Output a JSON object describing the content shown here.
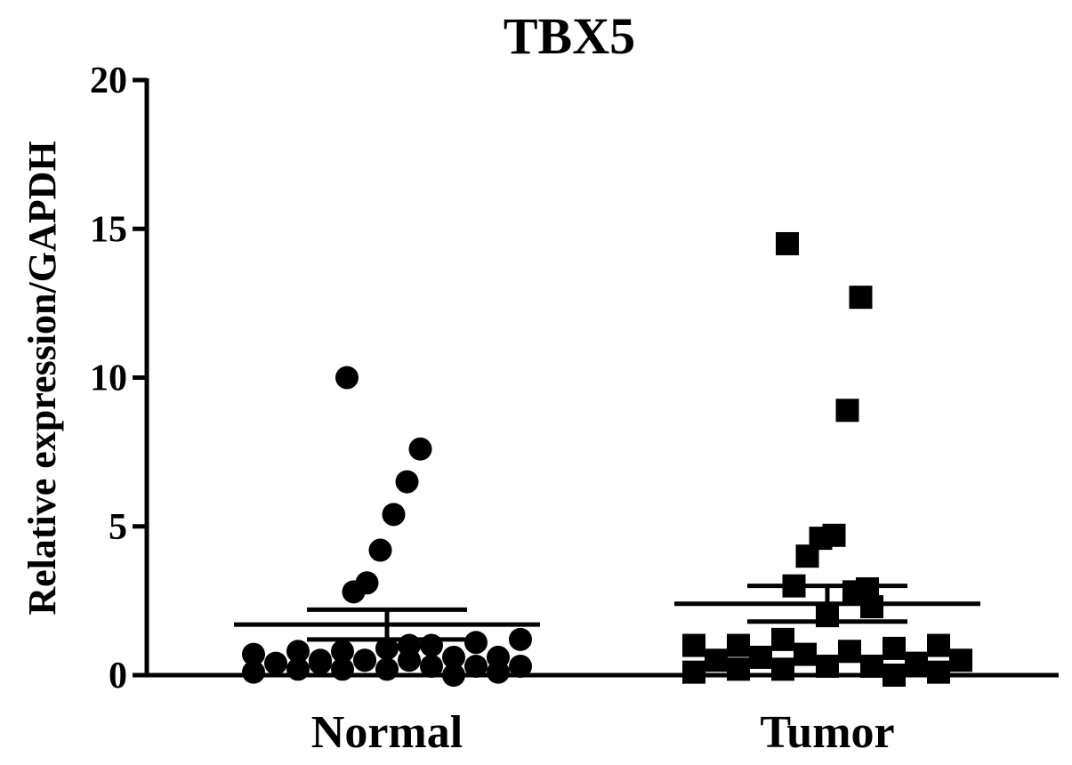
{
  "chart_data": {
    "type": "dot",
    "title": "TBX5",
    "y_label": "Relative expression/GAPDH",
    "ylim": [
      0,
      20
    ],
    "yticks": [
      0,
      5,
      10,
      15,
      20
    ],
    "color": "#000000",
    "groups": [
      {
        "name": "Normal",
        "marker": "circle",
        "mean": 1.7,
        "sem": 0.5,
        "values": [
          10.0,
          7.6,
          6.5,
          5.4,
          4.2,
          3.1,
          2.8,
          1.2,
          1.1,
          1.0,
          0.9,
          0.8,
          0.8,
          0.7,
          0.6,
          0.6,
          0.5,
          0.5,
          0.4,
          0.4,
          0.3,
          0.3,
          0.3,
          0.2,
          0.2,
          0.2,
          0.1,
          0.1,
          0.0,
          1.0,
          0.5,
          0.5
        ]
      },
      {
        "name": "Tumor",
        "marker": "square",
        "mean": 2.4,
        "sem": 0.6,
        "values": [
          14.5,
          12.7,
          8.9,
          4.7,
          4.6,
          4.0,
          3.0,
          2.9,
          2.8,
          2.3,
          2.0,
          1.2,
          1.0,
          1.0,
          1.0,
          0.9,
          0.8,
          0.7,
          0.6,
          0.5,
          0.5,
          0.4,
          0.3,
          0.3,
          0.2,
          0.2,
          0.1,
          0.1,
          0.0
        ]
      }
    ]
  }
}
